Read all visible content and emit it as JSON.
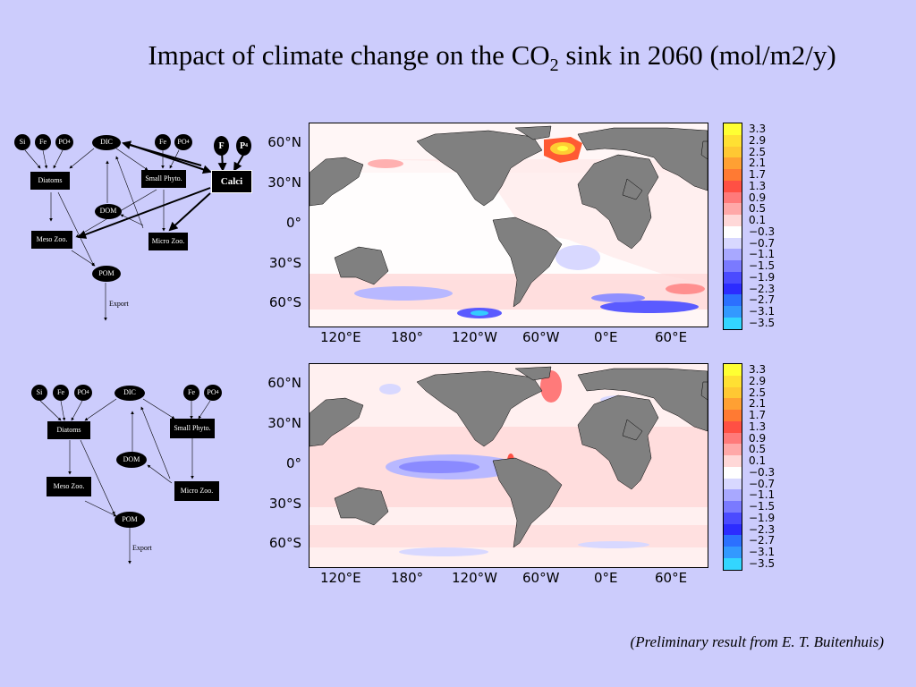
{
  "title": {
    "prefix": "Impact of climate change on the CO",
    "sub": "2",
    "suffix": " sink in 2060 (mol/m2/y)"
  },
  "credit": "(Preliminary result from E. T. Buitenhuis)",
  "latitude_labels": [
    "60°N",
    "30°N",
    "0°",
    "30°S",
    "60°S"
  ],
  "longitude_labels": [
    "120°E",
    "180°",
    "120°W",
    "60°W",
    "0°E",
    "60°E"
  ],
  "colorbar": {
    "labels": [
      "3.3",
      "2.9",
      "2.5",
      "2.1",
      "1.7",
      "1.3",
      "0.9",
      "0.5",
      "0.1",
      "−0.3",
      "−0.7",
      "−1.1",
      "−1.5",
      "−1.9",
      "−2.3",
      "−2.7",
      "−3.1",
      "−3.5"
    ],
    "colors": [
      "#ffff33",
      "#ffe033",
      "#ffc833",
      "#ffa033",
      "#ff7a33",
      "#ff5044",
      "#ff7a7a",
      "#ffa8a8",
      "#ffd8d8",
      "#ffffff",
      "#d8d8ff",
      "#a8a8ff",
      "#7a7aff",
      "#4b4bff",
      "#2c2cff",
      "#2c70ff",
      "#3399ff",
      "#33d6ff",
      "#66ffff"
    ]
  },
  "diagram_top": {
    "nodes": {
      "si": "Si",
      "fe1": "Fe",
      "po4a": "PO",
      "po4a_sub": "4",
      "dic": "DIC",
      "fe2": "Fe",
      "po4b": "PO",
      "po4b_sub": "4",
      "diatoms": "Diatoms",
      "small_phyto": "Small Phyto.",
      "dom": "DOM",
      "meso_zoo": "Meso Zoo.",
      "micro_zoo": "Micro Zoo.",
      "pom": "POM",
      "calci_fe": "F",
      "calci_p": "P",
      "calci_p_sub": "4",
      "calci": "Calci"
    },
    "export": "Export"
  },
  "diagram_bottom": {
    "nodes": {
      "si": "Si",
      "fe1": "Fe",
      "po4a": "PO",
      "po4a_sub": "4",
      "dic": "DIC",
      "fe2": "Fe",
      "po4b": "PO",
      "po4b_sub": "4",
      "diatoms": "Diatoms",
      "small_phyto": "Small Phyto.",
      "dom": "DOM",
      "meso_zoo": "Meso Zoo.",
      "micro_zoo": "Micro Zoo.",
      "pom": "POM"
    },
    "export": "Export"
  }
}
